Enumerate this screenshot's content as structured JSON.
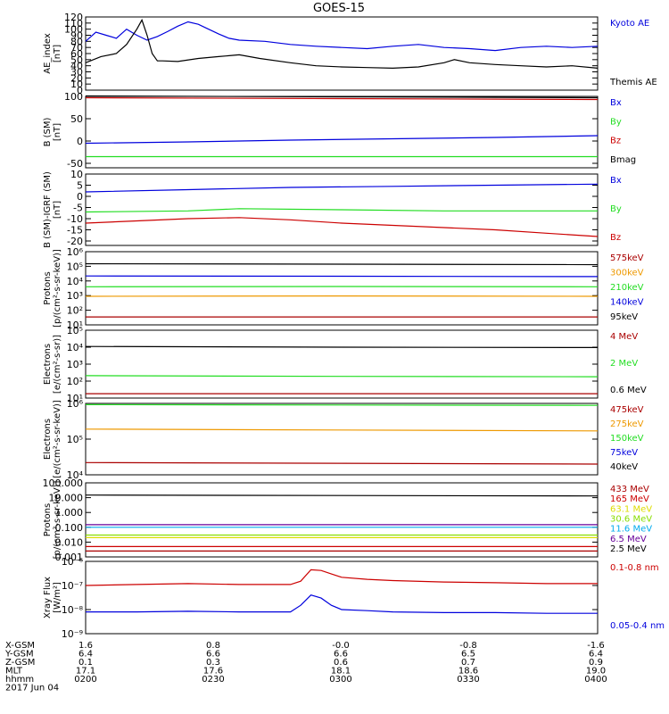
{
  "title": "GOES-15",
  "colors": {
    "black": "#000000",
    "blue": "#0000dd",
    "green": "#22dd22",
    "red": "#cc0000",
    "darkred": "#aa0000",
    "orange": "#ee9900",
    "gold": "#dddd00",
    "cyan": "#00aaee",
    "purple": "#660099",
    "yellowgreen": "#88dd00"
  },
  "chart_data": [
    {
      "id": "ae",
      "type": "line",
      "ylabel": [
        "AE_index",
        "[nT]"
      ],
      "scale": "linear",
      "ylim": [
        0,
        120
      ],
      "ticks": [
        0,
        10,
        20,
        30,
        40,
        50,
        60,
        70,
        80,
        90,
        100,
        110,
        120
      ],
      "tick_labels": [
        "0",
        "10",
        "20",
        "30",
        "40",
        "50",
        "60",
        "70",
        "80",
        "90",
        "100",
        "110",
        "120"
      ],
      "series": [
        {
          "name": "Kyoto AE",
          "color": "blue",
          "x": [
            0,
            0.02,
            0.04,
            0.06,
            0.08,
            0.1,
            0.12,
            0.14,
            0.16,
            0.18,
            0.2,
            0.22,
            0.24,
            0.26,
            0.28,
            0.3,
            0.35,
            0.4,
            0.45,
            0.5,
            0.55,
            0.6,
            0.65,
            0.7,
            0.75,
            0.8,
            0.85,
            0.9,
            0.95,
            1.0
          ],
          "y": [
            80,
            95,
            90,
            85,
            100,
            90,
            82,
            88,
            96,
            105,
            112,
            108,
            100,
            92,
            85,
            82,
            80,
            75,
            72,
            70,
            68,
            72,
            75,
            70,
            68,
            65,
            70,
            72,
            70,
            72
          ]
        },
        {
          "name": "Themis AE",
          "color": "black",
          "x": [
            0,
            0.03,
            0.06,
            0.08,
            0.1,
            0.11,
            0.12,
            0.13,
            0.14,
            0.15,
            0.18,
            0.22,
            0.26,
            0.3,
            0.34,
            0.4,
            0.45,
            0.5,
            0.55,
            0.6,
            0.65,
            0.7,
            0.72,
            0.75,
            0.8,
            0.85,
            0.9,
            0.95,
            1.0
          ],
          "y": [
            45,
            55,
            60,
            75,
            100,
            115,
            90,
            60,
            48,
            48,
            47,
            52,
            55,
            58,
            52,
            45,
            40,
            38,
            37,
            36,
            38,
            45,
            50,
            45,
            42,
            40,
            38,
            40,
            36
          ]
        }
      ]
    },
    {
      "id": "bsm",
      "type": "line",
      "ylabel": [
        "B (SM)",
        "[nT]"
      ],
      "scale": "linear",
      "ylim": [
        -60,
        100
      ],
      "ticks": [
        -50,
        0,
        50,
        100
      ],
      "tick_labels": [
        "-50",
        "0",
        "50",
        "100"
      ],
      "series": [
        {
          "name": "Bx",
          "color": "blue",
          "x": [
            0,
            0.2,
            0.4,
            0.6,
            0.8,
            1.0
          ],
          "y": [
            -5,
            -2,
            2,
            5,
            8,
            12
          ]
        },
        {
          "name": "By",
          "color": "green",
          "x": [
            0,
            0.5,
            1.0
          ],
          "y": [
            -35,
            -35,
            -35
          ]
        },
        {
          "name": "Bz",
          "color": "red",
          "x": [
            0,
            0.5,
            1.0
          ],
          "y": [
            97,
            95,
            93
          ]
        },
        {
          "name": "Bmag",
          "color": "black",
          "x": [
            0,
            0.5,
            1.0
          ],
          "y": [
            101,
            99,
            97
          ]
        }
      ]
    },
    {
      "id": "bigrf",
      "type": "line",
      "ylabel": [
        "B (SM)-IGRF (SM)",
        "[nT]"
      ],
      "scale": "linear",
      "ylim": [
        -22,
        10
      ],
      "ticks": [
        10,
        5,
        0,
        -5,
        -10,
        -15,
        -20
      ],
      "tick_labels": [
        "10",
        "5",
        "0",
        "-5",
        "-10",
        "-15",
        "-20"
      ],
      "series": [
        {
          "name": "Bx",
          "color": "blue",
          "x": [
            0,
            0.2,
            0.4,
            0.6,
            0.8,
            1.0
          ],
          "y": [
            2,
            3,
            4,
            4.5,
            5,
            5.5
          ]
        },
        {
          "name": "By",
          "color": "green",
          "x": [
            0,
            0.2,
            0.3,
            0.5,
            0.7,
            1.0
          ],
          "y": [
            -7,
            -6.5,
            -5.5,
            -6,
            -6.5,
            -6.5
          ]
        },
        {
          "name": "Bz",
          "color": "red",
          "x": [
            0,
            0.1,
            0.2,
            0.3,
            0.4,
            0.5,
            0.6,
            0.7,
            0.8,
            0.9,
            1.0
          ],
          "y": [
            -12,
            -11,
            -10,
            -9.5,
            -10.5,
            -12,
            -13,
            -14,
            -15,
            -16.5,
            -18
          ]
        }
      ]
    },
    {
      "id": "protons1",
      "type": "line",
      "ylabel": [
        "Protons",
        "[p/(cm²-s-sr-keV)]"
      ],
      "scale": "log",
      "ylim": [
        10,
        1000000
      ],
      "ticks": [
        10,
        100,
        1000,
        10000,
        100000,
        1000000
      ],
      "tick_labels": [
        "10¹",
        "10²",
        "10³",
        "10⁴",
        "10⁵",
        "10⁶"
      ],
      "series": [
        {
          "name": "575keV",
          "color": "darkred",
          "x": [
            0,
            0.5,
            1.0
          ],
          "y": [
            35,
            35,
            35
          ]
        },
        {
          "name": "300keV",
          "color": "orange",
          "x": [
            0,
            0.5,
            1.0
          ],
          "y": [
            900,
            950,
            900
          ]
        },
        {
          "name": "210keV",
          "color": "green",
          "x": [
            0,
            0.5,
            1.0
          ],
          "y": [
            4000,
            4200,
            4000
          ]
        },
        {
          "name": "140keV",
          "color": "blue",
          "x": [
            0,
            0.5,
            1.0
          ],
          "y": [
            22000,
            21000,
            20000
          ]
        },
        {
          "name": "95keV",
          "color": "black",
          "x": [
            0,
            0.5,
            1.0
          ],
          "y": [
            150000,
            140000,
            130000
          ]
        }
      ],
      "legend_order": [
        "575keV",
        "300keV",
        "210keV",
        "140keV",
        "95keV"
      ]
    },
    {
      "id": "electrons1",
      "type": "line",
      "ylabel": [
        "Electrons",
        "[e/(cm²-s-sr)]"
      ],
      "scale": "log",
      "ylim": [
        10,
        100000
      ],
      "ticks": [
        10,
        100,
        1000,
        10000,
        100000
      ],
      "tick_labels": [
        "10¹",
        "10²",
        "10³",
        "10⁴",
        "10⁵"
      ],
      "series": [
        {
          "name": "4 MeV",
          "color": "darkred",
          "x": [
            0,
            0.5,
            1.0
          ],
          "y": [
            18,
            18,
            18
          ]
        },
        {
          "name": "2 MeV",
          "color": "green",
          "x": [
            0,
            0.5,
            1.0
          ],
          "y": [
            210,
            190,
            180
          ]
        },
        {
          "name": "0.6 MeV",
          "color": "black",
          "x": [
            0,
            0.5,
            1.0
          ],
          "y": [
            11000,
            10000,
            9500
          ]
        }
      ]
    },
    {
      "id": "electrons2",
      "type": "line",
      "ylabel": [
        "Electrons",
        "[e/(cm²-s-sr-keV)]"
      ],
      "scale": "log",
      "ylim": [
        10000,
        1000000
      ],
      "ticks": [
        10000,
        100000,
        1000000
      ],
      "tick_labels": [
        "10⁴",
        "10⁵",
        "10⁶"
      ],
      "series": [
        {
          "name": "475keV",
          "color": "darkred",
          "x": [
            0,
            0.5,
            1.0
          ],
          "y": [
            22000,
            21000,
            20000
          ]
        },
        {
          "name": "275keV",
          "color": "orange",
          "x": [
            0,
            0.5,
            1.0
          ],
          "y": [
            190000,
            180000,
            170000
          ]
        },
        {
          "name": "150keV",
          "color": "green",
          "x": [
            0,
            0.5,
            1.0
          ],
          "y": [
            920000,
            900000,
            880000
          ]
        },
        {
          "name": "75keV",
          "color": "blue",
          "x": [],
          "y": []
        },
        {
          "name": "40keV",
          "color": "black",
          "x": [],
          "y": []
        }
      ]
    },
    {
      "id": "protons2",
      "type": "line",
      "ylabel": [
        "Protons",
        "[p/(cm²-s-sr-keV)]"
      ],
      "scale": "log",
      "ylim": [
        0.001,
        100
      ],
      "ticks": [
        0.001,
        0.01,
        0.1,
        1,
        10,
        100
      ],
      "tick_labels": [
        "0.001",
        "0.010",
        "0.100",
        "1.000",
        "10.000",
        "100.000"
      ],
      "series": [
        {
          "name": "433 MeV",
          "color": "darkred",
          "x": [
            0,
            0.5,
            1.0
          ],
          "y": [
            0.0025,
            0.0025,
            0.0025
          ]
        },
        {
          "name": "165 MeV",
          "color": "red",
          "x": [
            0,
            0.5,
            1.0
          ],
          "y": [
            0.005,
            0.005,
            0.005
          ]
        },
        {
          "name": "63.1 MeV",
          "color": "gold",
          "x": [
            0,
            0.5,
            1.0
          ],
          "y": [
            0.02,
            0.02,
            0.02
          ]
        },
        {
          "name": "30.6 MeV",
          "color": "yellowgreen",
          "x": [
            0,
            0.5,
            1.0
          ],
          "y": [
            0.03,
            0.03,
            0.03
          ]
        },
        {
          "name": "11.6 MeV",
          "color": "cyan",
          "x": [
            0,
            0.5,
            1.0
          ],
          "y": [
            0.1,
            0.1,
            0.1
          ]
        },
        {
          "name": "6.5 MeV",
          "color": "purple",
          "x": [
            0,
            0.5,
            1.0
          ],
          "y": [
            0.15,
            0.15,
            0.15
          ]
        },
        {
          "name": "2.5 MeV",
          "color": "black",
          "x": [
            0,
            0.5,
            1.0
          ],
          "y": [
            15,
            14,
            13
          ]
        }
      ]
    },
    {
      "id": "xray",
      "type": "line",
      "ylabel": [
        "Xray Flux",
        "[W/m²]"
      ],
      "scale": "log",
      "ylim": [
        1e-09,
        1e-06
      ],
      "ticks": [
        1e-09,
        1e-08,
        1e-07,
        1e-06
      ],
      "tick_labels": [
        "10⁻⁹",
        "10⁻⁸",
        "10⁻⁷",
        "10⁻⁶"
      ],
      "series": [
        {
          "name": "0.1-0.8 nm",
          "color": "red",
          "x": [
            0,
            0.1,
            0.2,
            0.3,
            0.4,
            0.42,
            0.44,
            0.46,
            0.48,
            0.5,
            0.55,
            0.6,
            0.7,
            0.8,
            0.9,
            1.0
          ],
          "y": [
            1e-07,
            1.1e-07,
            1.2e-07,
            1.1e-07,
            1.1e-07,
            1.5e-07,
            4.5e-07,
            4.2e-07,
            3e-07,
            2.2e-07,
            1.8e-07,
            1.6e-07,
            1.4e-07,
            1.3e-07,
            1.2e-07,
            1.2e-07
          ]
        },
        {
          "name": "0.05-0.4 nm",
          "color": "blue",
          "x": [
            0,
            0.1,
            0.2,
            0.3,
            0.4,
            0.42,
            0.44,
            0.46,
            0.48,
            0.5,
            0.55,
            0.6,
            0.7,
            0.8,
            0.9,
            1.0
          ],
          "y": [
            8e-09,
            8e-09,
            8.5e-09,
            8e-09,
            8e-09,
            1.5e-08,
            4e-08,
            3e-08,
            1.5e-08,
            1e-08,
            9e-09,
            8e-09,
            7.5e-09,
            7.5e-09,
            7e-09,
            7e-09
          ]
        }
      ]
    }
  ],
  "footer": {
    "row_labels": [
      "X-GSM",
      "Y-GSM",
      "Z-GSM",
      "MLT",
      "hhmm",
      "2017 Jun 04"
    ],
    "columns": [
      [
        "1.6",
        "6.4",
        "0.1",
        "17.1",
        "0200"
      ],
      [
        "0.8",
        "6.6",
        "0.3",
        "17.6",
        "0230"
      ],
      [
        "-0.0",
        "6.6",
        "0.6",
        "18.1",
        "0300"
      ],
      [
        "-0.8",
        "6.5",
        "0.7",
        "18.6",
        "0330"
      ],
      [
        "-1.6",
        "6.4",
        "0.9",
        "19.0",
        "0400"
      ]
    ]
  }
}
